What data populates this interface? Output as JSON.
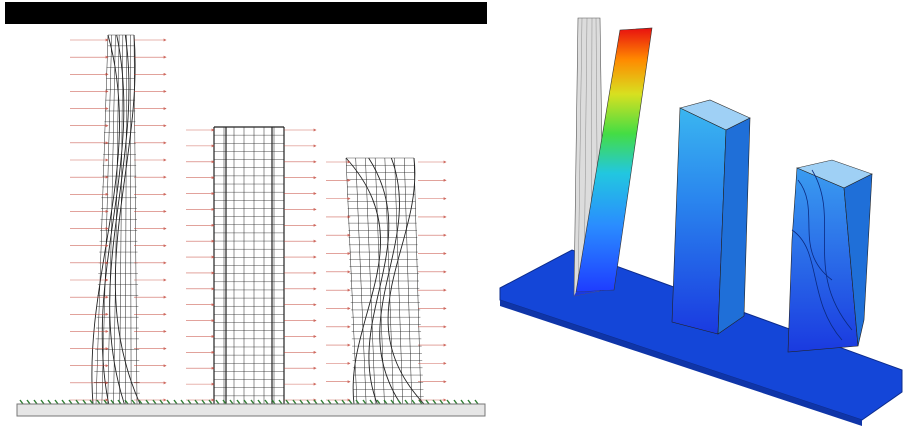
{
  "figure": {
    "left_panel": {
      "towers": [
        "twisted-tapered-tower",
        "straight-rectangular-tower",
        "twisted-tower"
      ],
      "load_arrow_color": "#c0392b",
      "frame_color": "#222222",
      "base_plate_color": "#e6e6e6",
      "ground_support_color": "#2e7d32"
    },
    "right_panel": {
      "base_color": "#1446d8",
      "colormap": [
        "#1e3cff",
        "#2a8cff",
        "#22c7e0",
        "#44dd44",
        "#d8e020",
        "#ff8a00",
        "#e81010"
      ]
    }
  }
}
